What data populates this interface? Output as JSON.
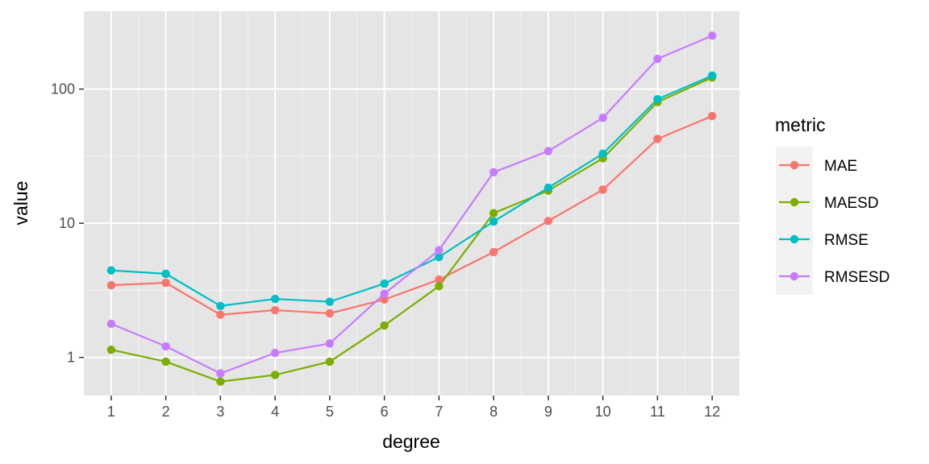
{
  "chart_data": {
    "type": "line",
    "xlabel": "degree",
    "ylabel": "value",
    "x": [
      1,
      2,
      3,
      4,
      5,
      6,
      7,
      8,
      9,
      10,
      11,
      12
    ],
    "y_scale": "log10",
    "ylim": [
      0.52,
      380
    ],
    "xlim": [
      0.5,
      12.5
    ],
    "y_ticks": [
      1,
      10,
      100
    ],
    "y_tick_labels": [
      "1",
      "10",
      "100"
    ],
    "x_tick_labels": [
      "1",
      "2",
      "3",
      "4",
      "5",
      "6",
      "7",
      "8",
      "9",
      "10",
      "11",
      "12"
    ],
    "grid": true,
    "panel_background": "#e5e5e5",
    "legend": {
      "title": "metric",
      "placement": "right"
    },
    "series": [
      {
        "name": "MAE",
        "color": "#f8766d",
        "values": [
          3.45,
          3.6,
          2.08,
          2.25,
          2.13,
          2.7,
          3.8,
          6.1,
          10.4,
          17.8,
          42.5,
          63
        ]
      },
      {
        "name": "MAESD",
        "color": "#7cae00",
        "values": [
          1.14,
          0.93,
          0.66,
          0.74,
          0.93,
          1.73,
          3.4,
          11.9,
          17.5,
          30.5,
          80,
          122
        ]
      },
      {
        "name": "RMSE",
        "color": "#00bfc4",
        "values": [
          4.45,
          4.2,
          2.42,
          2.73,
          2.6,
          3.55,
          5.6,
          10.3,
          18.4,
          33,
          84,
          126
        ]
      },
      {
        "name": "RMSESD",
        "color": "#c77cff",
        "values": [
          1.78,
          1.21,
          0.76,
          1.08,
          1.27,
          2.98,
          6.3,
          24,
          34.5,
          61,
          168,
          250
        ]
      }
    ]
  }
}
